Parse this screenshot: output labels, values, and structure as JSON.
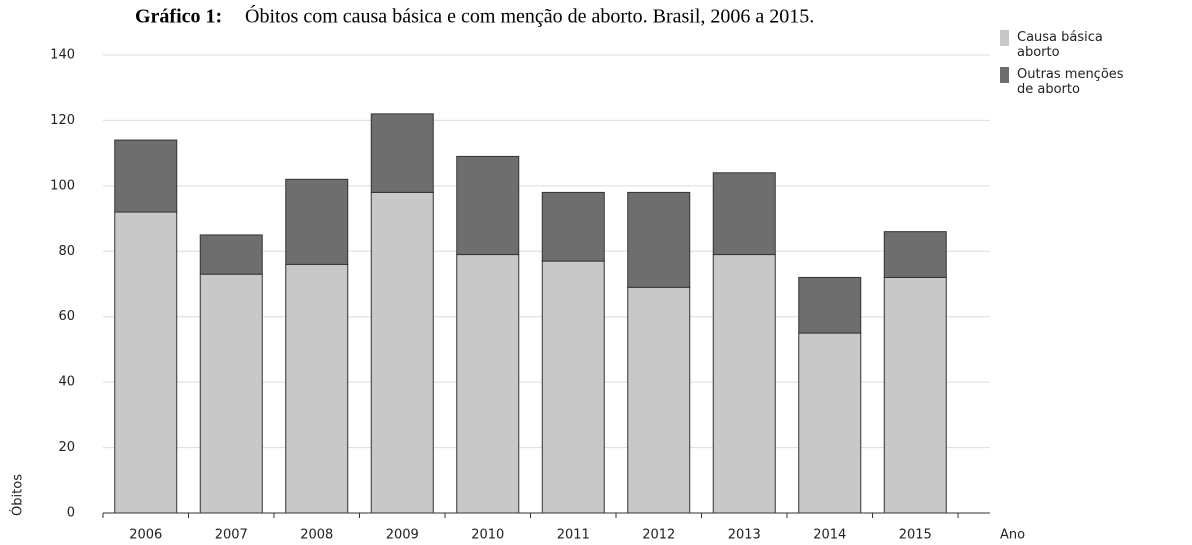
{
  "chart_data": {
    "type": "stacked_bar",
    "title_label": "Gráfico 1:",
    "title": "Óbitos com causa básica e com menção de aborto. Brasil, 2006 a 2015.",
    "y_label": "Óbitos",
    "x_label": "Ano",
    "categories": [
      "2006",
      "2007",
      "2008",
      "2009",
      "2010",
      "2011",
      "2012",
      "2013",
      "2014",
      "2015"
    ],
    "series": [
      {
        "name": "Causa básica aborto",
        "color": "#c8c8c8",
        "values": [
          92,
          73,
          76,
          98,
          79,
          77,
          69,
          79,
          55,
          72
        ]
      },
      {
        "name": "Outras menções de aborto",
        "color": "#6e6e6e",
        "values": [
          22,
          12,
          26,
          24,
          30,
          21,
          29,
          25,
          17,
          14
        ]
      }
    ],
    "ylim": [
      0,
      140
    ],
    "yticks": [
      0,
      20,
      40,
      60,
      80,
      100,
      120,
      140
    ],
    "grid": true
  }
}
